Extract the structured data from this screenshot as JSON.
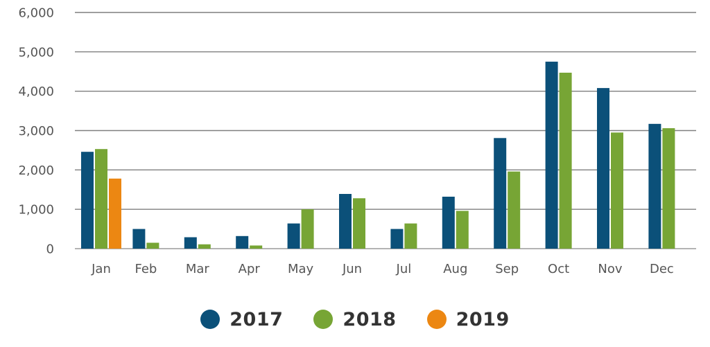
{
  "chart_data": {
    "type": "bar",
    "title": "",
    "xlabel": "",
    "ylabel": "",
    "ylim": [
      0,
      6000
    ],
    "yticks": [
      0,
      1000,
      2000,
      3000,
      4000,
      5000,
      6000
    ],
    "ytick_labels": [
      "0",
      "1,000",
      "2,000",
      "3,000",
      "4,000",
      "5,000",
      "6,000"
    ],
    "grid": true,
    "legend_position": "bottom-center",
    "categories": [
      "Jan",
      "Feb",
      "Mar",
      "Apr",
      "May",
      "Jun",
      "Jul",
      "Aug",
      "Sep",
      "Oct",
      "Nov",
      "Dec"
    ],
    "series": [
      {
        "name": "2017",
        "color": "#0b5079",
        "values": [
          2460,
          500,
          290,
          320,
          640,
          1390,
          500,
          1320,
          2810,
          4750,
          4080,
          3170
        ]
      },
      {
        "name": "2018",
        "color": "#77a535",
        "values": [
          2530,
          150,
          110,
          80,
          1000,
          1280,
          640,
          960,
          1960,
          4470,
          2950,
          3060
        ]
      },
      {
        "name": "2019",
        "color": "#ec8712",
        "values": [
          1780,
          null,
          null,
          null,
          null,
          null,
          null,
          null,
          null,
          null,
          null,
          null
        ]
      }
    ]
  }
}
